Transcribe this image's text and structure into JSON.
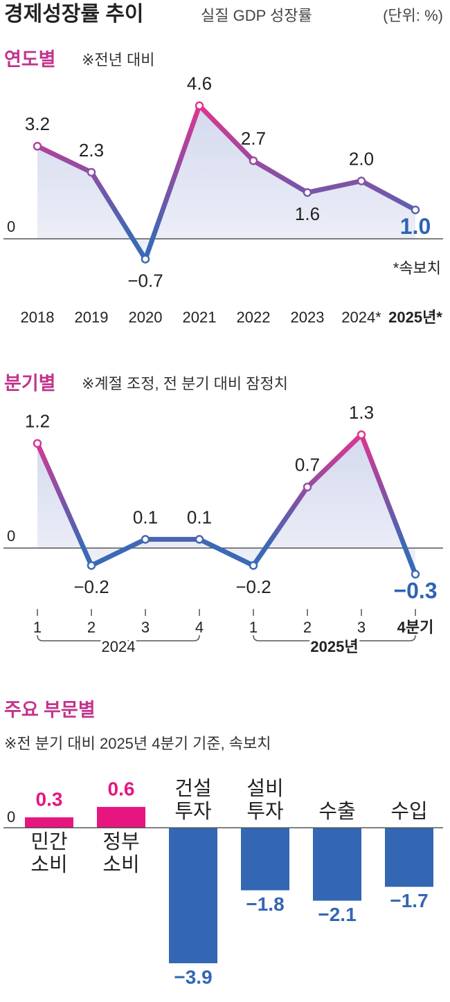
{
  "header": {
    "title": "경제성장률 추이",
    "subtitle": "실질 GDP 성장률",
    "unit": "(단위: %)"
  },
  "chart_data": [
    {
      "type": "line",
      "title": "연도별",
      "subtitle": "※전년 대비",
      "categories": [
        "2018",
        "2019",
        "2020",
        "2021",
        "2022",
        "2023",
        "2024*",
        "2025년*"
      ],
      "values": [
        3.2,
        2.3,
        -0.7,
        4.6,
        2.7,
        1.6,
        2.0,
        1.0
      ],
      "value_labels": [
        "3.2",
        "2.3",
        "−0.7",
        "4.6",
        "2.7",
        "1.6",
        "2.0",
        "1.0"
      ],
      "colors": [
        "#e0348f",
        "#3a69b5"
      ],
      "ylim": [
        -1,
        5
      ],
      "yticks": [
        0
      ],
      "annotation": "*속보치"
    },
    {
      "type": "line",
      "title": "분기별",
      "subtitle": "※계절 조정, 전 분기 대비 잠정치",
      "categories": [
        "1",
        "2",
        "3",
        "4",
        "1",
        "2",
        "3",
        "4분기"
      ],
      "groups": [
        {
          "label": "2024",
          "count": 4
        },
        {
          "label": "2025년",
          "count": 4
        }
      ],
      "values": [
        1.2,
        -0.2,
        0.1,
        0.1,
        -0.2,
        0.7,
        1.3,
        -0.3
      ],
      "value_labels": [
        "1.2",
        "−0.2",
        "0.1",
        "0.1",
        "−0.2",
        "0.7",
        "1.3",
        "−0.3"
      ],
      "colors": [
        "#e0348f",
        "#3a69b5"
      ],
      "ylim": [
        -0.5,
        1.5
      ],
      "yticks": [
        0
      ]
    },
    {
      "type": "bar",
      "title": "주요 부문별",
      "subtitle": "※전 분기 대비 2025년 4분기 기준, 속보치",
      "categories": [
        [
          "민간",
          "소비"
        ],
        [
          "정부",
          "소비"
        ],
        [
          "건설",
          "투자"
        ],
        [
          "설비",
          "투자"
        ],
        [
          "수출"
        ],
        [
          "수입"
        ]
      ],
      "values": [
        0.3,
        0.6,
        -3.9,
        -1.8,
        -2.1,
        -1.7
      ],
      "value_labels": [
        "0.3",
        "0.6",
        "−3.9",
        "−1.8",
        "−2.1",
        "−1.7"
      ],
      "colors": [
        "#e6157f",
        "#3366b3"
      ],
      "ylim": [
        -4,
        1
      ],
      "yticks": [
        0
      ]
    }
  ]
}
